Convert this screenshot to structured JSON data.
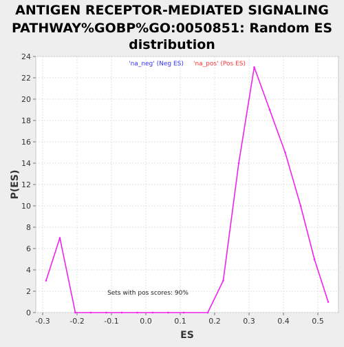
{
  "chart_data": {
    "type": "line",
    "title": [
      "ANTIGEN RECEPTOR-MEDIATED SIGNALING",
      "PATHWAY%GOBP%GO:0050851: Random ES",
      "distribution"
    ],
    "xlabel": "ES",
    "ylabel": "P(ES)",
    "xlim": [
      -0.32,
      0.56
    ],
    "ylim": [
      0,
      24
    ],
    "x_ticks": [
      -0.3,
      -0.2,
      -0.1,
      0.0,
      0.1,
      0.2,
      0.3,
      0.4,
      0.5
    ],
    "x_tick_labels": [
      "-0.3",
      "-0.2",
      "-0.1",
      "0.0",
      "0.1",
      "0.2",
      "0.3",
      "0.4",
      "0.5"
    ],
    "y_ticks": [
      0,
      2,
      4,
      6,
      8,
      10,
      12,
      14,
      16,
      18,
      20,
      22,
      24
    ],
    "y_tick_labels": [
      "0",
      "2",
      "4",
      "6",
      "8",
      "10",
      "12",
      "14",
      "16",
      "18",
      "20",
      "22",
      "24"
    ],
    "grid": true,
    "legend": [
      {
        "label": "'na_neg' (Neg ES)",
        "color": "#3333ff"
      },
      {
        "label": "'na_pos' (Pos ES)",
        "color": "#ff3333"
      }
    ],
    "legend_position": "top",
    "annotation": "Sets with pos scores: 90%",
    "series": [
      {
        "color": "#ee22ee",
        "x": [
          -0.29,
          -0.25,
          -0.205,
          -0.16,
          -0.115,
          -0.07,
          -0.025,
          0.02,
          0.065,
          0.11,
          0.18,
          0.225,
          0.27,
          0.315,
          0.36,
          0.405,
          0.45,
          0.49,
          0.53
        ],
        "y": [
          3,
          7,
          0,
          0,
          0,
          0,
          0,
          0,
          0,
          0,
          0,
          3,
          14,
          23,
          19,
          15,
          10,
          5,
          1
        ]
      }
    ]
  }
}
